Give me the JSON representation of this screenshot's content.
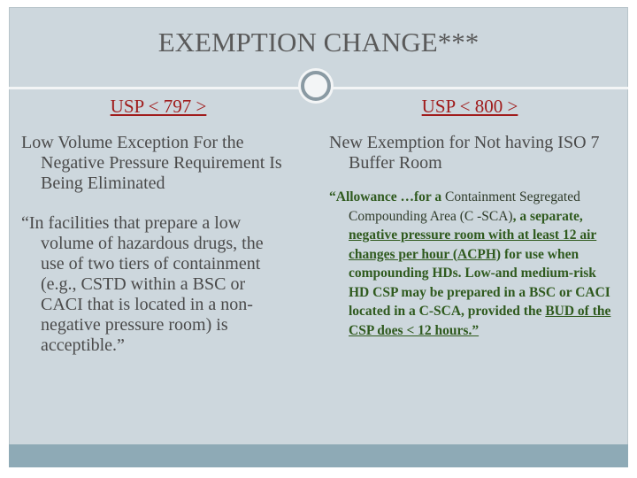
{
  "title": "EXEMPTION CHANGE***",
  "left": {
    "heading": "USP < 797 >",
    "items": [
      "Low Volume Exception For the Negative Pressure Requirement Is Being Eliminated",
      "“In facilities that prepare a low volume of hazardous drugs, the use of two tiers of containment (e.g., CSTD within a BSC or CACI that is located in a non-negative pressure room) is acceptible.”"
    ]
  },
  "right": {
    "heading": "USP < 800 >",
    "items": [
      "New Exemption for Not having ISO 7 Buffer Room"
    ],
    "quote": [
      "“Allowance …for a ",
      "Containment Segregated Compounding Area (C -SCA)",
      ", a separate, ",
      "negative pressure room with at least 12 air changes per hour (ACPH)",
      " for use when compounding HDs. Low-and medium-risk HD CSP may be prepared in a BSC or CACI located in a C-SCA, provided the ",
      "BUD of the CSP does < 12 hours.”"
    ]
  }
}
